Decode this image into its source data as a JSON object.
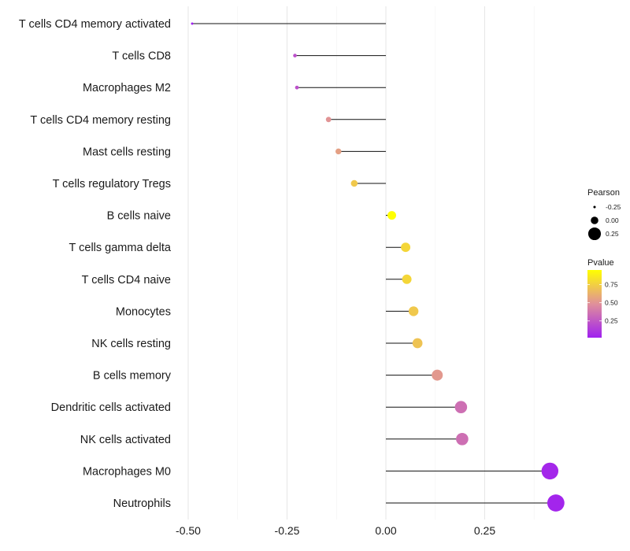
{
  "chart_data": {
    "type": "lollipop",
    "title": "",
    "xlabel": "",
    "ylabel": "",
    "xlim": [
      -0.5,
      0.45
    ],
    "xticks": [
      -0.5,
      -0.25,
      0.0,
      0.25
    ],
    "xtick_labels": [
      "-0.50",
      "-0.25",
      "0.00",
      "0.25"
    ],
    "grid": "vertical",
    "categories": [
      "T cells CD4 memory activated",
      "T cells CD8",
      "Macrophages M2",
      "T cells CD4 memory resting",
      "Mast cells resting",
      "T cells regulatory  Tregs ",
      "B cells naive",
      "T cells gamma delta",
      "T cells CD4 naive",
      "Monocytes",
      "NK cells resting",
      "B cells memory",
      "Dendritic cells activated",
      "NK cells activated",
      "Macrophages M0",
      "Neutrophils"
    ],
    "values": [
      -0.49,
      -0.23,
      -0.225,
      -0.145,
      -0.12,
      -0.08,
      0.015,
      0.05,
      0.053,
      0.07,
      0.08,
      0.13,
      0.19,
      0.193,
      0.415,
      0.43
    ],
    "pvalues": [
      0.02,
      0.22,
      0.22,
      0.5,
      0.55,
      0.72,
      0.95,
      0.78,
      0.78,
      0.72,
      0.7,
      0.52,
      0.35,
      0.35,
      0.05,
      0.04
    ],
    "size_by": "Pearson",
    "color_by": "Pvalue",
    "legend": {
      "position": "right",
      "size_title": "Pearson",
      "size_labels": [
        "-0.25",
        "0.00",
        "0.25"
      ],
      "size_values": [
        -0.25,
        0.0,
        0.25
      ],
      "color_title": "Pvalue",
      "color_labels": [
        "0.75",
        "0.50",
        "0.25"
      ],
      "color_values": [
        0.75,
        0.5,
        0.25
      ],
      "color_low": "#a020f0",
      "color_mid": "#e0909a",
      "color_high": "#ffff00",
      "color_range": [
        0.02,
        0.95
      ]
    }
  }
}
